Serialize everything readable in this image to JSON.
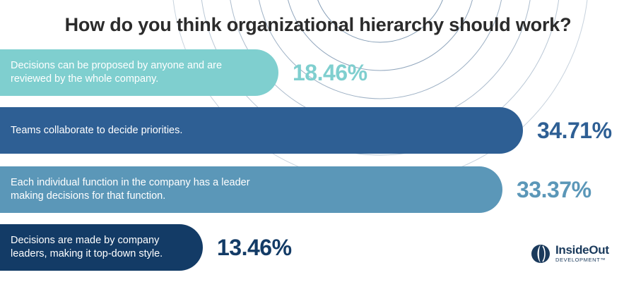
{
  "title": "How do you think organizational hierarchy should work?",
  "colors": {
    "bar_1": "#7fcfcf",
    "bar_2": "#2e5f94",
    "bar_3": "#5b97b8",
    "bar_4": "#133b66",
    "ring": "#1e4a78"
  },
  "chart_data": {
    "type": "bar",
    "orientation": "horizontal",
    "title": "How do you think organizational hierarchy should work?",
    "categories": [
      "Decisions can be proposed by anyone and are reviewed by the whole company.",
      "Teams collaborate to decide priorities.",
      "Each individual function in the company has a leader making decisions for that function.",
      "Decisions are made by company leaders, making it top-down style."
    ],
    "values": [
      18.46,
      34.71,
      33.37,
      13.46
    ],
    "value_labels": [
      "18.46%",
      "34.71%",
      "33.37%",
      "13.46%"
    ],
    "unit": "%",
    "grid": false,
    "legend": "none"
  },
  "logo": {
    "name": "InsideOut",
    "sub": "DEVELOPMENT™"
  }
}
